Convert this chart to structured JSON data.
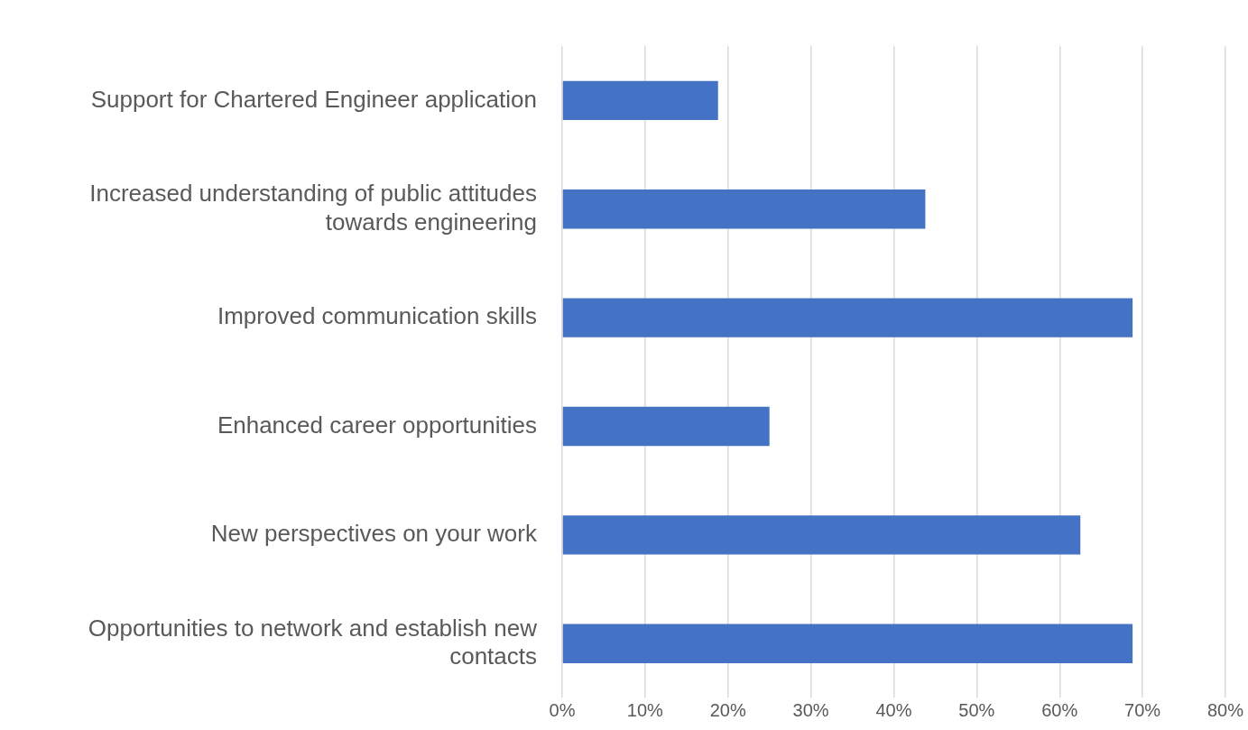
{
  "chart_data": {
    "type": "bar",
    "orientation": "horizontal",
    "categories": [
      "Support for Chartered Engineer application",
      "Increased understanding of public attitudes towards engineering",
      "Improved communication skills",
      "Enhanced career opportunities",
      "New perspectives on your work",
      "Opportunities to network and establish new contacts"
    ],
    "values": [
      18.8,
      43.8,
      68.8,
      25,
      62.5,
      68.8
    ],
    "color": "#4472c4",
    "xlim": [
      0,
      80
    ],
    "xticks": [
      {
        "value": 0,
        "label": "0%"
      },
      {
        "value": 10,
        "label": "10%"
      },
      {
        "value": 20,
        "label": "20%"
      },
      {
        "value": 30,
        "label": "30%"
      },
      {
        "value": 40,
        "label": "40%"
      },
      {
        "value": 50,
        "label": "50%"
      },
      {
        "value": 60,
        "label": "60%"
      },
      {
        "value": 70,
        "label": "70%"
      },
      {
        "value": 80,
        "label": "80%"
      }
    ],
    "grid": "x"
  }
}
